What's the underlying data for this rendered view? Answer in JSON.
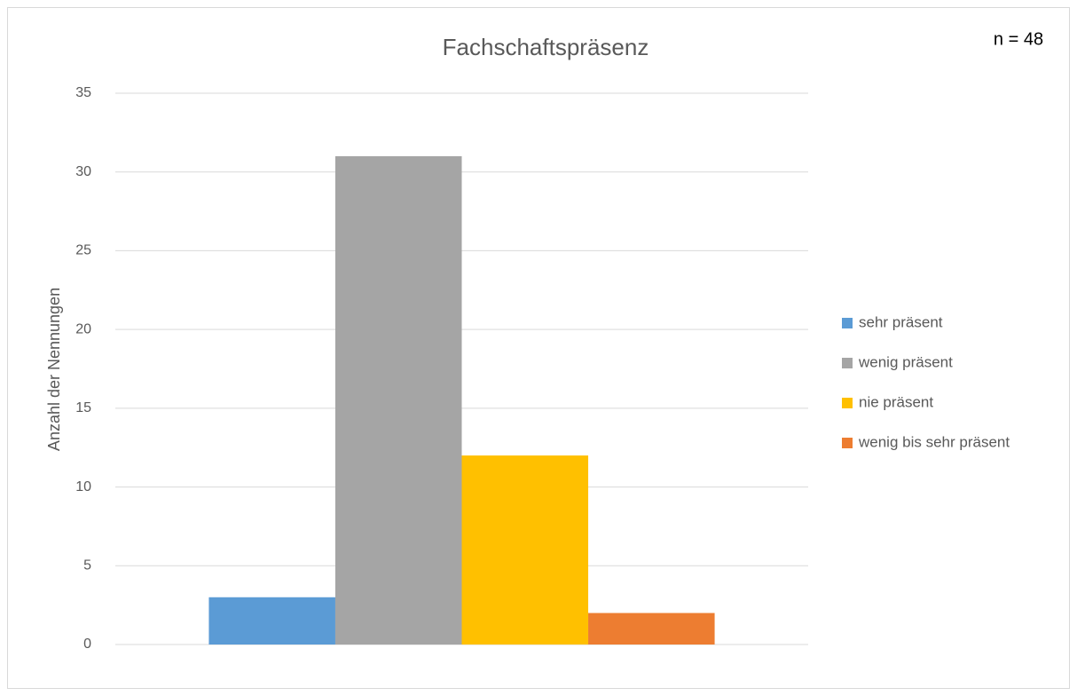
{
  "chart_data": {
    "type": "bar",
    "title": "Fachschaftspräsenz",
    "annotation": "n = 48",
    "y_label": "Anzahl der Nennungen",
    "categories": [
      null
    ],
    "series": [
      {
        "name": "sehr präsent",
        "color": "#5b9bd5",
        "values": [
          3
        ]
      },
      {
        "name": "wenig präsent",
        "color": "#a5a5a5",
        "values": [
          31
        ]
      },
      {
        "name": "nie präsent",
        "color": "#ffc000",
        "values": [
          12
        ]
      },
      {
        "name": "wenig bis sehr präsent",
        "color": "#ed7d31",
        "values": [
          2
        ]
      }
    ],
    "ylim": [
      0,
      35
    ],
    "yticks": [
      0,
      5,
      10,
      15,
      20,
      25,
      30,
      35
    ],
    "grid": true,
    "legend": "right"
  }
}
